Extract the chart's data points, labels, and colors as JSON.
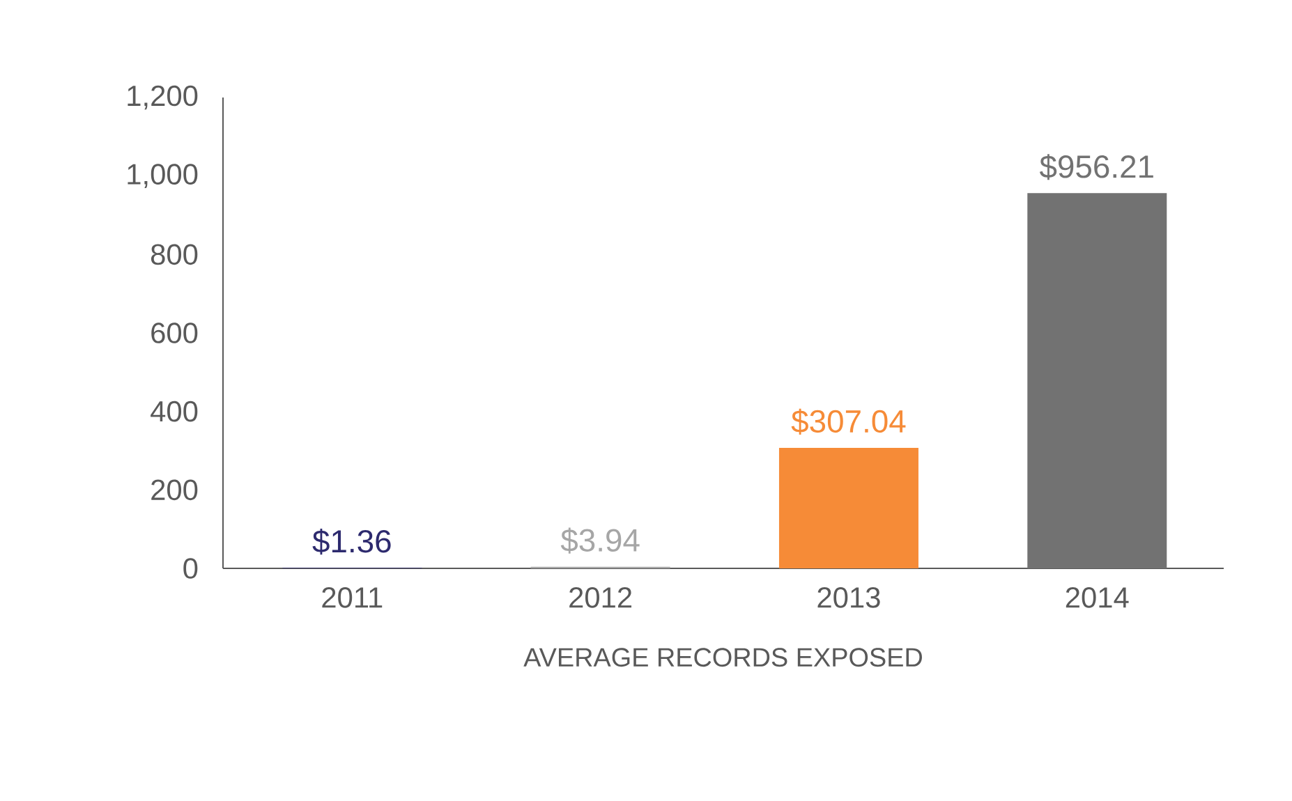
{
  "chart_data": {
    "type": "bar",
    "xlabel": "AVERAGE RECORDS EXPOSED",
    "categories": [
      "2011",
      "2012",
      "2013",
      "2014"
    ],
    "values": [
      1.36,
      3.94,
      307.04,
      956.21
    ],
    "colors": [
      "#2d2a6e",
      "#a6a6a6",
      "#f68b37",
      "#727272"
    ],
    "value_labels": [
      "$1.36",
      "$3.94",
      "$307.04",
      "$956.21"
    ],
    "ylim": [
      0,
      1200
    ],
    "yticks": [
      0,
      200,
      400,
      600,
      800,
      {
        "value": 1000,
        "label": "1,000"
      },
      {
        "value": 1200,
        "label": "1,200"
      }
    ]
  }
}
